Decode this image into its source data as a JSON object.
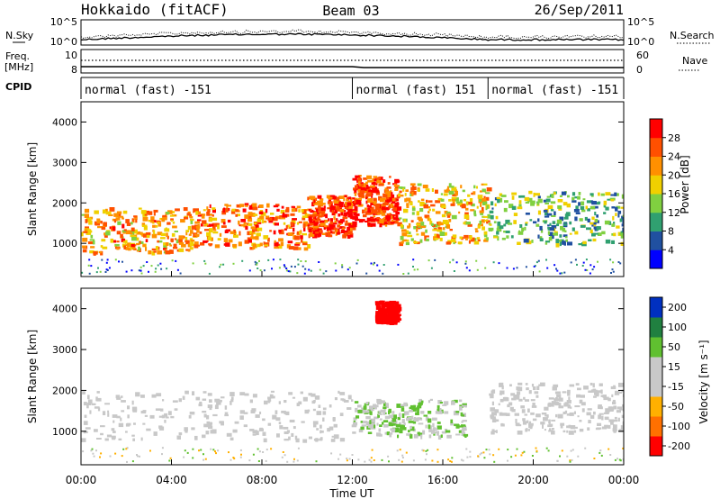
{
  "header": {
    "radar": "Hokkaido (fitACF)",
    "beam": "Beam 03",
    "date": "26/Sep/2011"
  },
  "panels": {
    "nsky_label": "N.Sky",
    "nsearch_label": "N.Search",
    "freq_label_1": "Freq.",
    "freq_label_2": "[MHz]",
    "nave_label": "Nave",
    "cpid_label": "CPID",
    "nsky_ticks": [
      "10^5",
      "10^0"
    ],
    "nsearch_ticks": [
      "10^5",
      "10^0"
    ],
    "freq_ticks": [
      "10",
      "8"
    ],
    "nave_ticks": [
      "60",
      "0"
    ]
  },
  "cpid_segments": [
    {
      "label": "normal (fast) -151",
      "start": 0,
      "end": 12
    },
    {
      "label": "normal (fast) 151",
      "start": 12,
      "end": 18
    },
    {
      "label": "normal (fast) -151",
      "start": 18,
      "end": 24
    }
  ],
  "colors": {
    "power_scale": [
      "#0000ff",
      "#2050a0",
      "#30a070",
      "#80d040",
      "#f0d000",
      "#ff9000",
      "#ff5000",
      "#ff0000"
    ],
    "velocity_scale": [
      "#ff0000",
      "#ff7000",
      "#ffb000",
      "#c8c8c8",
      "#c8c8c8",
      "#60c030",
      "#208040",
      "#0030c0"
    ]
  },
  "colorbars": {
    "power": {
      "label": "Power [dB]",
      "ticks": [
        "28",
        "24",
        "20",
        "16",
        "12",
        "8",
        "4"
      ]
    },
    "velocity": {
      "label": "Velocity [m s⁻¹]",
      "ticks": [
        "200",
        "100",
        "50",
        "15",
        "-15",
        "-50",
        "-100",
        "-200"
      ]
    }
  },
  "chart_data": [
    {
      "type": "heatmap",
      "title": "Power",
      "ylabel": "Slant Range [km]",
      "xlabel": "Time UT",
      "x_ticks": [
        "00:00",
        "04:00",
        "08:00",
        "12:00",
        "16:00",
        "20:00",
        "00:00"
      ],
      "y_ticks": [
        1000,
        2000,
        3000,
        4000
      ],
      "xlim": [
        0,
        24
      ],
      "ylim": [
        180,
        4500
      ],
      "zlabel": "Power [dB]",
      "zlim": [
        0,
        32
      ],
      "echo_regions": [
        {
          "t_start": 0,
          "t_end": 5,
          "range_low": 800,
          "range_high": 1900,
          "power": 22
        },
        {
          "t_start": 5,
          "t_end": 10,
          "range_low": 900,
          "range_high": 2000,
          "power": 24
        },
        {
          "t_start": 10,
          "t_end": 12,
          "range_low": 1200,
          "range_high": 2200,
          "power": 28
        },
        {
          "t_start": 12,
          "t_end": 14,
          "range_low": 1500,
          "range_high": 2700,
          "power": 28
        },
        {
          "t_start": 14,
          "t_end": 18,
          "range_low": 1000,
          "range_high": 2500,
          "power": 20
        },
        {
          "t_start": 18,
          "t_end": 24,
          "range_low": 1000,
          "range_high": 2300,
          "power": 12
        }
      ]
    },
    {
      "type": "heatmap",
      "title": "Velocity",
      "ylabel": "Slant Range [km]",
      "xlabel": "Time UT",
      "x_ticks": [
        "00:00",
        "04:00",
        "08:00",
        "12:00",
        "16:00",
        "20:00",
        "00:00"
      ],
      "y_ticks": [
        1000,
        2000,
        3000,
        4000
      ],
      "xlim": [
        0,
        24
      ],
      "ylim": [
        180,
        4500
      ],
      "zlabel": "Velocity [m s⁻¹]",
      "zlim": [
        -250,
        250
      ],
      "echo_regions": [
        {
          "t_start": 0,
          "t_end": 12,
          "range_low": 800,
          "range_high": 2000,
          "velocity": -10
        },
        {
          "t_start": 12,
          "t_end": 17,
          "range_low": 900,
          "range_high": 1800,
          "velocity": 60
        },
        {
          "t_start": 13,
          "t_end": 14,
          "range_low": 3700,
          "range_high": 4200,
          "velocity": -220
        },
        {
          "t_start": 18,
          "t_end": 24,
          "range_low": 1000,
          "range_high": 2200,
          "velocity": 0
        }
      ]
    }
  ]
}
